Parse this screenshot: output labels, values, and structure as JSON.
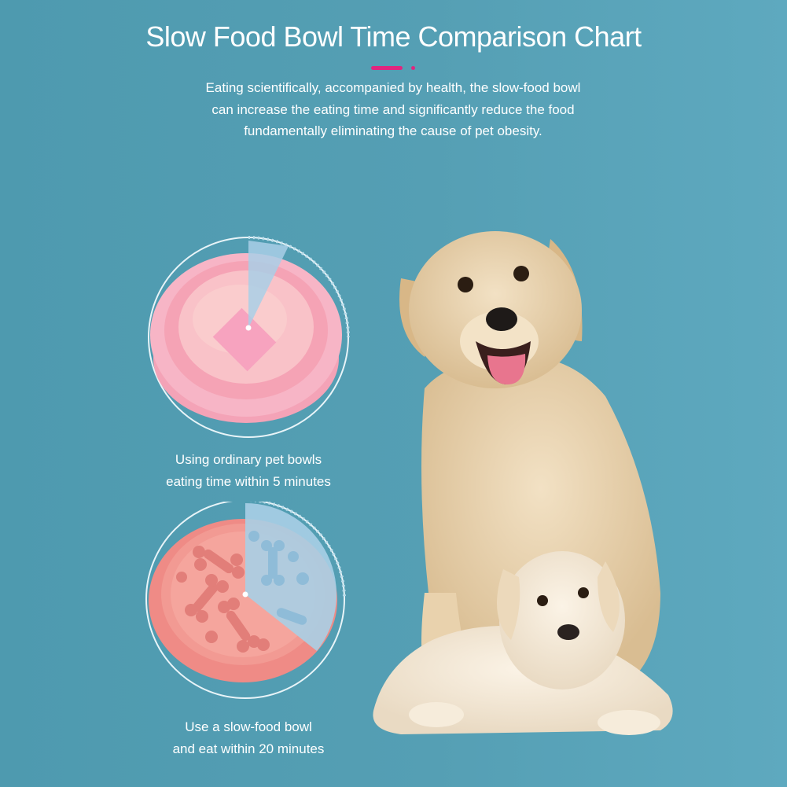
{
  "header": {
    "title": "Slow Food Bowl Time Comparison Chart",
    "subtitle_lines": [
      "Eating scientifically, accompanied by health, the slow-food bowl",
      "can increase the eating time and significantly reduce the food",
      "fundamentally eliminating the cause of pet obesity."
    ]
  },
  "comparison": {
    "ordinary": {
      "caption_lines": [
        "Using ordinary pet bowls",
        "eating time within 5 minutes"
      ],
      "minutes": 5
    },
    "slow": {
      "caption_lines": [
        "Use a slow-food bowl",
        "and eat within 20 minutes"
      ],
      "minutes": 20
    }
  },
  "colors": {
    "background": "#559fb4",
    "accent": "#e0267f",
    "ordinary_bowl": "#f7a9be",
    "slow_bowl": "#f0908a",
    "time_wedge": "#a9cfe6",
    "ring": "#e8f4f8"
  }
}
